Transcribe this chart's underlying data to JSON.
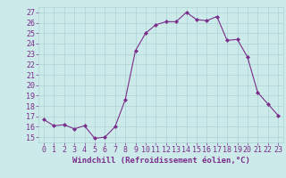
{
  "x": [
    0,
    1,
    2,
    3,
    4,
    5,
    6,
    7,
    8,
    9,
    10,
    11,
    12,
    13,
    14,
    15,
    16,
    17,
    18,
    19,
    20,
    21,
    22,
    23
  ],
  "y": [
    16.7,
    16.1,
    16.2,
    15.8,
    16.1,
    14.9,
    15.0,
    16.0,
    18.6,
    23.3,
    25.0,
    25.8,
    26.1,
    26.1,
    27.0,
    26.3,
    26.2,
    26.6,
    24.3,
    24.4,
    22.7,
    19.3,
    18.2,
    17.1
  ],
  "line_color": "#7B2D8B",
  "marker": "D",
  "marker_size": 2,
  "bg_color": "#cceaea",
  "grid_color": "#aad4d4",
  "text_color": "#7B2D8B",
  "xlabel": "Windchill (Refroidissement éolien,°C)",
  "ylabel_ticks": [
    15,
    16,
    17,
    18,
    19,
    20,
    21,
    22,
    23,
    24,
    25,
    26,
    27
  ],
  "xlim": [
    -0.5,
    23.5
  ],
  "ylim": [
    14.5,
    27.5
  ],
  "xlabel_fontsize": 6.5,
  "tick_fontsize": 6.0,
  "figw": 3.2,
  "figh": 2.0,
  "dpi": 100
}
